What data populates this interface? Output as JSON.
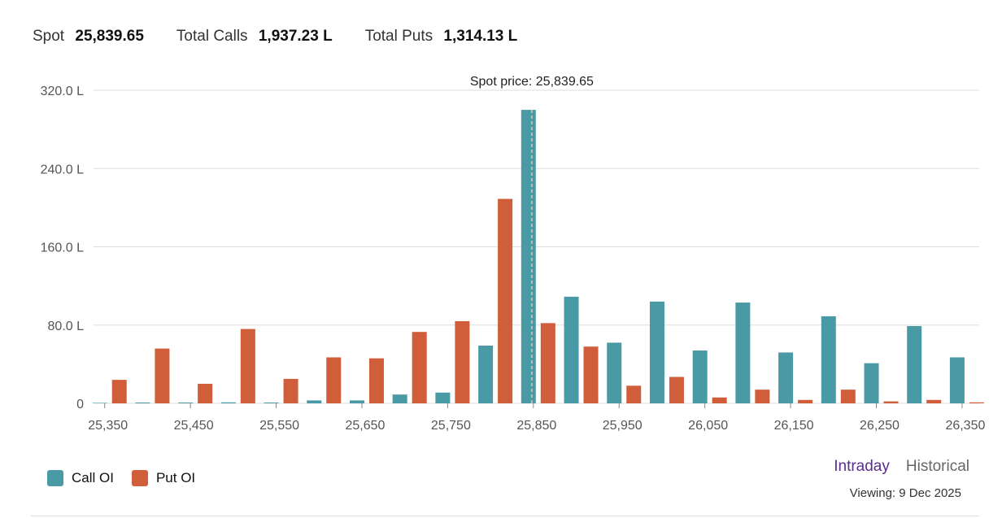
{
  "summary": {
    "spot_label": "Spot",
    "spot_value": "25,839.65",
    "calls_label": "Total Calls",
    "calls_value": "1,937.23 L",
    "puts_label": "Total Puts",
    "puts_value": "1,314.13 L"
  },
  "colors": {
    "call": "#4a9aa5",
    "put": "#d05e3a",
    "grid": "#dddddd",
    "spot_line": "#bbbbbb"
  },
  "chart_data": {
    "type": "bar",
    "ylim": [
      0,
      320
    ],
    "yticks": [
      0,
      80,
      160,
      240,
      320
    ],
    "ytick_labels": [
      "0",
      "80.0 L",
      "160.0 L",
      "240.0 L",
      "320.0 L"
    ],
    "xticks": [
      25350,
      25450,
      25550,
      25650,
      25750,
      25850,
      25950,
      26050,
      26150,
      26250,
      26350
    ],
    "xtick_labels": [
      "25,350",
      "25,450",
      "25,550",
      "25,650",
      "25,750",
      "25,850",
      "25,950",
      "26,050",
      "26,150",
      "26,250",
      "26,350"
    ],
    "strikes": [
      25350,
      25400,
      25450,
      25500,
      25550,
      25600,
      25650,
      25700,
      25750,
      25800,
      25850,
      25900,
      25950,
      26000,
      26050,
      26100,
      26150,
      26200,
      26250,
      26300,
      26350
    ],
    "series": [
      {
        "name": "Call OI",
        "values": [
          0.5,
          0.8,
          0.8,
          1,
          0.8,
          3,
          3,
          9,
          11,
          59,
          300,
          109,
          62,
          104,
          54,
          103,
          52,
          89,
          41,
          79,
          47
        ]
      },
      {
        "name": "Put OI",
        "values": [
          24,
          56,
          20,
          76,
          25,
          47,
          46,
          73,
          84,
          209,
          82,
          58,
          18,
          27,
          6,
          14,
          3.5,
          14,
          2,
          3.5,
          1
        ]
      }
    ],
    "spot": 25839.65,
    "spot_annotation": "Spot price: 25,839.65",
    "grid": true,
    "legend_position": "bottom-left"
  },
  "legend": {
    "call": "Call OI",
    "put": "Put OI"
  },
  "modes": {
    "intraday": "Intraday",
    "historical": "Historical"
  },
  "viewing": "Viewing: 9 Dec 2025"
}
